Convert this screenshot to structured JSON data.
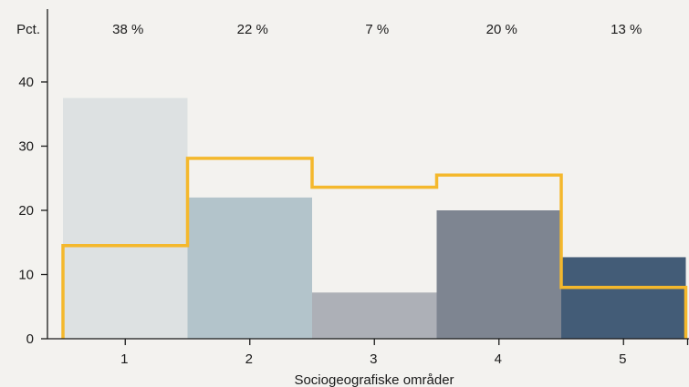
{
  "chart_data": {
    "type": "bar",
    "categories": [
      "1",
      "2",
      "3",
      "4",
      "5"
    ],
    "series": [
      {
        "values": [
          37.5,
          22.0,
          7.2,
          20.0,
          12.7
        ],
        "colors": [
          "#dde1e2",
          "#b3c4cb",
          "#adb0b7",
          "#7e8591",
          "#435c77"
        ]
      },
      {
        "type": "step",
        "values": [
          14.5,
          28.1,
          23.6,
          25.5,
          8.0
        ],
        "color": "#f4b82c"
      }
    ],
    "top_labels": [
      "38 %",
      "22 %",
      "7 %",
      "20 %",
      "13 %"
    ],
    "ylabel": "Pct.",
    "xlabel": "Sociogeografiske områder",
    "ylim": [
      0,
      45
    ],
    "yticks": [
      "0",
      "10",
      "20",
      "30",
      "40"
    ],
    "grid": false,
    "legend": "none",
    "background": "#f3f2ef"
  }
}
